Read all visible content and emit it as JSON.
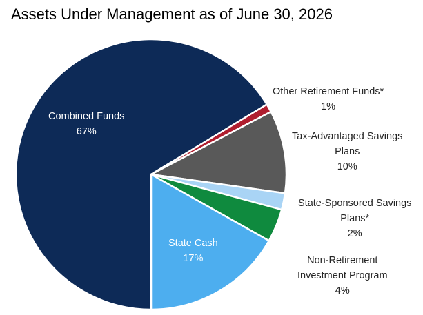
{
  "chart_data": {
    "type": "pie",
    "title": "Assets Under Management as of June 30, 2026",
    "slices": [
      {
        "label_lines": [
          "Combined Funds"
        ],
        "value": 67,
        "value_label": "67%",
        "color": "#0d2a57"
      },
      {
        "label_lines": [
          "Other Retirement Funds*"
        ],
        "value": 1,
        "value_label": "1%",
        "color": "#b01e2f"
      },
      {
        "label_lines": [
          "Tax-Advantaged Savings",
          "Plans"
        ],
        "value": 10,
        "value_label": "10%",
        "color": "#595959"
      },
      {
        "label_lines": [
          "State-Sponsored Savings",
          "Plans*"
        ],
        "value": 2,
        "value_label": "2%",
        "color": "#a9d4f5"
      },
      {
        "label_lines": [
          "Non-Retirement",
          "Investment Program"
        ],
        "value": 4,
        "value_label": "4%",
        "color": "#0f8a3e"
      },
      {
        "label_lines": [
          "State Cash"
        ],
        "value": 17,
        "value_label": "17%",
        "color": "#4daeef"
      }
    ]
  }
}
